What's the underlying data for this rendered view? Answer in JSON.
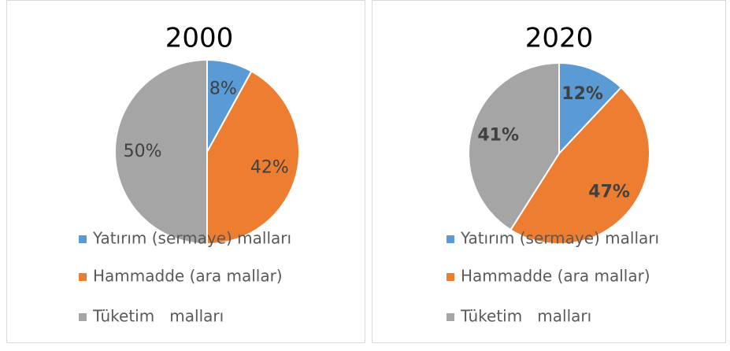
{
  "chart_data": [
    {
      "type": "pie",
      "title": "2000",
      "categories": [
        "Yatırım (sermaye) malları",
        "Hammadde (ara mallar)",
        "Tüketim   malları"
      ],
      "values": [
        8,
        42,
        50
      ],
      "value_labels": [
        "8%",
        "42%",
        "50%"
      ],
      "colors": [
        "#5b9bd5",
        "#ed7d31",
        "#a5a5a5"
      ]
    },
    {
      "type": "pie",
      "title": "2020",
      "categories": [
        "Yatırım (sermaye) malları",
        "Hammadde (ara mallar)",
        "Tüketim   malları"
      ],
      "values": [
        12,
        47,
        41
      ],
      "value_labels": [
        "12%",
        "47%",
        "41%"
      ],
      "colors": [
        "#5b9bd5",
        "#ed7d31",
        "#a5a5a5"
      ]
    }
  ]
}
